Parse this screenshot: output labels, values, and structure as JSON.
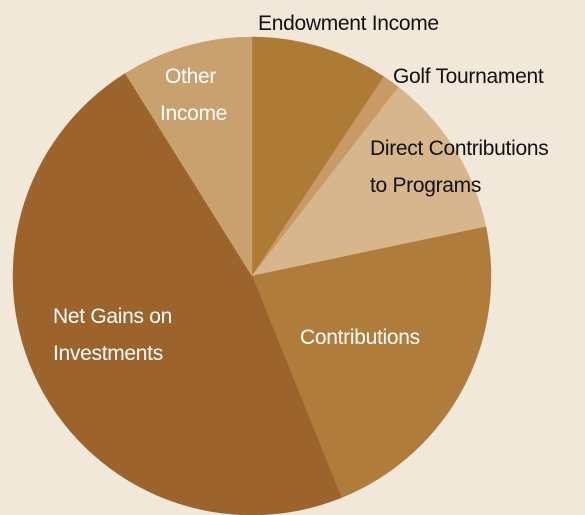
{
  "chart_data": {
    "type": "pie",
    "title": "",
    "slices": [
      {
        "label": "Endowment Income",
        "value": 9.3,
        "color": "#ad7b35",
        "label_color": "#111111"
      },
      {
        "label": "Golf Tournament",
        "value": 1.2,
        "color": "#c99a66",
        "label_color": "#111111"
      },
      {
        "label": "Direct Contributions to Programs",
        "value": 11.2,
        "color": "#d7b68e",
        "label_color": "#111111"
      },
      {
        "label": "Contributions",
        "value": 22.2,
        "color": "#b07c3b",
        "label_color": "#ffffff"
      },
      {
        "label": "Net Gains on Investments",
        "value": 47.2,
        "color": "#9c642c",
        "label_color": "#ffffff"
      },
      {
        "label": "Other Income",
        "value": 8.9,
        "color": "#c8a16f",
        "label_color": "#ffffff"
      }
    ],
    "legend": "none",
    "background": "#f2e8d9"
  },
  "labels": {
    "endowment": "Endowment Income",
    "golf": "Golf Tournament",
    "direct_line1": "Direct Contributions",
    "direct_line2": "to Programs",
    "contributions": "Contributions",
    "net_line1": "Net Gains on",
    "net_line2": "Investments",
    "other_line1": "Other",
    "other_line2": "Income"
  }
}
